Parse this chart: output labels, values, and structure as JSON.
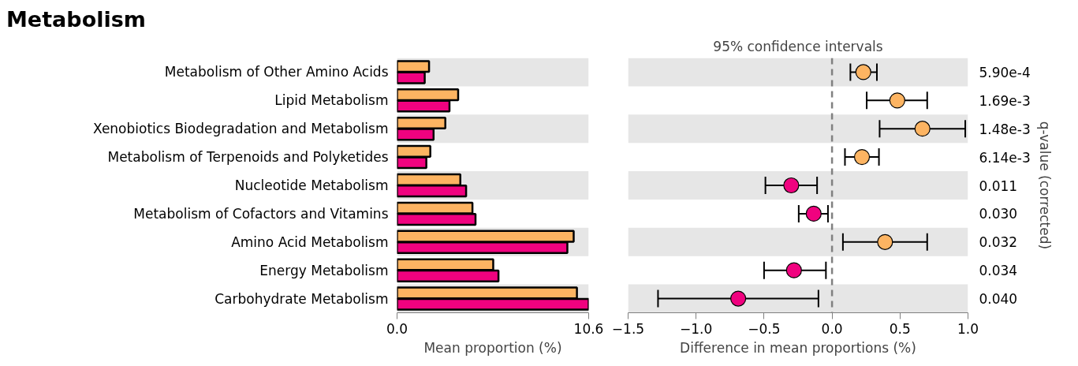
{
  "chart_data": [
    {
      "type": "bar",
      "title": "Metabolism",
      "orientation": "horizontal",
      "categories": [
        "Metabolism of Other Amino Acids",
        "Lipid Metabolism",
        "Xenobiotics Biodegradation and Metabolism",
        "Metabolism of Terpenoids and Polyketides",
        "Nucleotide Metabolism",
        "Metabolism of Cofactors and Vitamins",
        "Amino Acid Metabolism",
        "Energy Metabolism",
        "Carbohydrate Metabolism"
      ],
      "series": [
        {
          "color": "#fdb462",
          "values": [
            1.77,
            3.38,
            2.67,
            1.84,
            3.5,
            4.17,
            9.77,
            5.32,
            9.95
          ]
        },
        {
          "color": "#f0027f",
          "values": [
            1.53,
            2.9,
            2.02,
            1.62,
            3.82,
            4.34,
            9.42,
            5.61,
            10.6
          ]
        }
      ],
      "xlim": [
        0,
        10.6
      ],
      "xticks": [
        {
          "value": 0,
          "label": "0.0"
        },
        10.6
      ],
      "xlabel": "Mean proportion (%)",
      "grid": false
    },
    {
      "type": "scatter",
      "title": "95% confidence intervals",
      "categories": [
        "5.90e-4",
        "1.69e-3",
        "1.48e-3",
        "6.14e-3",
        "0.011",
        "0.030",
        "0.032",
        "0.034",
        "0.040"
      ],
      "values": [
        0.23,
        0.48,
        0.665,
        0.22,
        -0.3,
        -0.135,
        0.39,
        -0.28,
        -0.69
      ],
      "errors": [
        [
          0.135,
          0.33
        ],
        [
          0.255,
          0.7
        ],
        [
          0.35,
          0.98
        ],
        [
          0.095,
          0.345
        ],
        [
          -0.49,
          -0.11
        ],
        [
          -0.245,
          -0.03
        ],
        [
          0.08,
          0.7
        ],
        [
          -0.5,
          -0.045
        ],
        [
          -1.28,
          -0.1
        ]
      ],
      "colors": [
        "#fdb462",
        "#fdb462",
        "#fdb462",
        "#fdb462",
        "#f0027f",
        "#f0027f",
        "#fdb462",
        "#f0027f",
        "#f0027f"
      ],
      "y2label": "q-value (corrected)",
      "xlim": [
        -1.5,
        1.0
      ],
      "xticks": [
        {
          "value": -1.5,
          "label": "−1.5"
        },
        {
          "value": -1.0,
          "label": "−1.0"
        },
        {
          "value": -0.5,
          "label": "−0.5"
        },
        {
          "value": 0,
          "label": "0.0"
        },
        {
          "value": 0.5,
          "label": "0.5"
        },
        {
          "value": 1.0,
          "label": "1.0"
        }
      ],
      "xlabel": "Difference in mean proportions (%)",
      "ref_lines": [
        {
          "axis": "x",
          "value": 0,
          "color": "#808080",
          "line_style": "dashed"
        }
      ],
      "marker": "circle",
      "orientation": "horizontal",
      "grid": false
    }
  ]
}
